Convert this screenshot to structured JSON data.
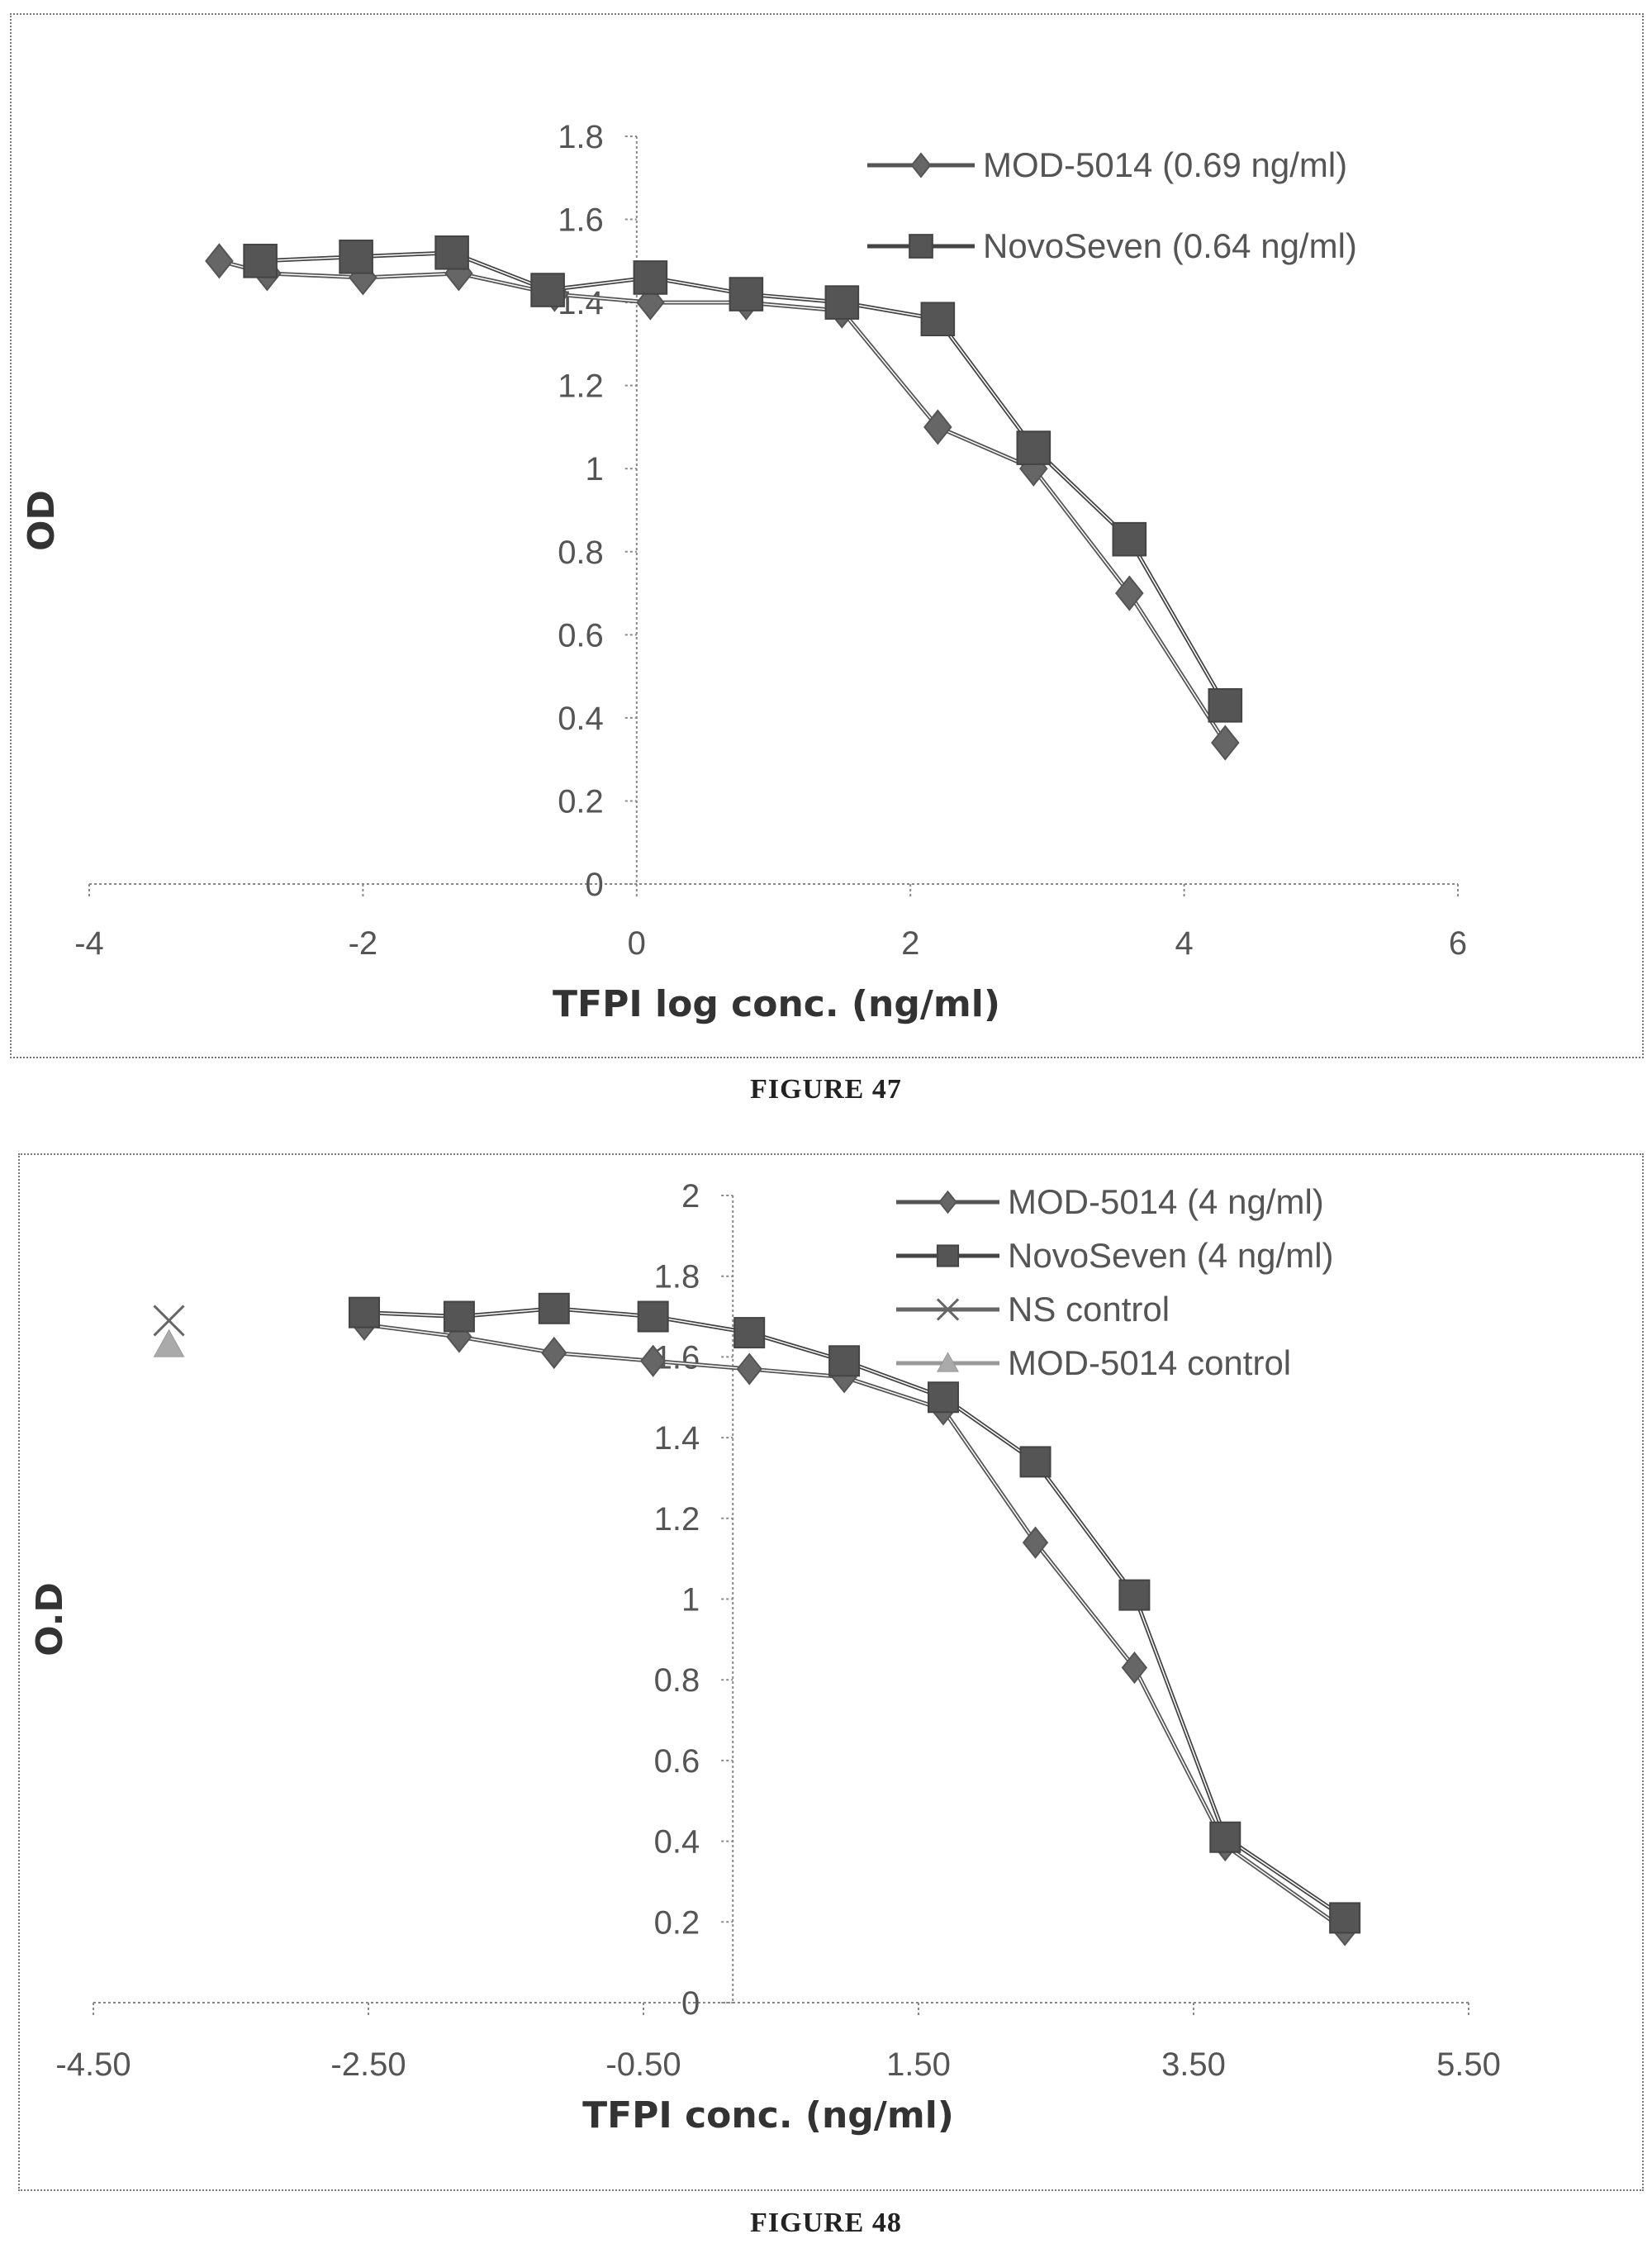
{
  "figures": [
    {
      "caption": "FIGURE 47",
      "chart_data": {
        "type": "line",
        "title": "",
        "xlabel": "TFPI log conc. (ng/ml)",
        "ylabel": "OD",
        "xlim": [
          -4,
          6
        ],
        "ylim": [
          0,
          1.8
        ],
        "xticks": [
          -4,
          -2,
          0,
          2,
          4,
          6
        ],
        "xtick_labels": [
          "-4",
          "-2",
          "0",
          "2",
          "4",
          "6"
        ],
        "yticks": [
          0,
          0.2,
          0.4,
          0.6,
          0.8,
          1,
          1.2,
          1.4,
          1.6,
          1.8
        ],
        "ytick_labels": [
          "0",
          "0.2",
          "0.4",
          "0.6",
          "0.8",
          "1",
          "1.2",
          "1.4",
          "1.6",
          "1.8"
        ],
        "grid": false,
        "legend_position": "top-right",
        "series": [
          {
            "name": "MOD-5014 (0.69 ng/ml)",
            "marker": "diamond",
            "x": [
              -3.05,
              -2.7,
              -2.0,
              -1.3,
              -0.6,
              0.1,
              0.8,
              1.5,
              2.2,
              2.9,
              3.6,
              4.3
            ],
            "y": [
              1.5,
              1.47,
              1.46,
              1.47,
              1.42,
              1.4,
              1.4,
              1.38,
              1.1,
              1.0,
              0.7,
              0.34
            ]
          },
          {
            "name": "NovoSeven (0.64 ng/ml)",
            "marker": "square",
            "x": [
              -2.75,
              -2.05,
              -1.35,
              -0.65,
              0.1,
              0.8,
              1.5,
              2.2,
              2.9,
              3.6,
              4.3
            ],
            "y": [
              1.5,
              1.51,
              1.52,
              1.43,
              1.46,
              1.42,
              1.4,
              1.36,
              1.05,
              0.83,
              0.43
            ]
          }
        ]
      }
    },
    {
      "caption": "FIGURE 48",
      "chart_data": {
        "type": "line",
        "title": "",
        "xlabel": "TFPI conc. (ng/ml)",
        "ylabel": "O.D",
        "xlim": [
          -4.5,
          5.5
        ],
        "ylim": [
          0,
          2
        ],
        "xticks": [
          -4.5,
          -2.5,
          -0.5,
          1.5,
          3.5,
          5.5
        ],
        "xtick_labels": [
          "-4.50",
          "-2.50",
          "-0.50",
          "1.50",
          "3.50",
          "5.50"
        ],
        "yticks": [
          0,
          0.2,
          0.4,
          0.6,
          0.8,
          1,
          1.2,
          1.4,
          1.6,
          1.8,
          2
        ],
        "ytick_labels": [
          "0",
          "0.2",
          "0.4",
          "0.6",
          "0.8",
          "1",
          "1.2",
          "1.4",
          "1.6",
          "1.8",
          "2"
        ],
        "grid": false,
        "legend_position": "top-right",
        "series": [
          {
            "name": "MOD-5014 (4 ng/ml)",
            "marker": "diamond",
            "x": [
              -2.53,
              -1.84,
              -1.15,
              -0.43,
              0.27,
              0.96,
              1.68,
              2.35,
              3.07,
              3.73,
              4.6
            ],
            "y": [
              1.68,
              1.65,
              1.61,
              1.59,
              1.57,
              1.55,
              1.47,
              1.14,
              0.83,
              0.39,
              0.18
            ]
          },
          {
            "name": "NovoSeven (4 ng/ml)",
            "marker": "square",
            "x": [
              -2.53,
              -1.84,
              -1.15,
              -0.43,
              0.27,
              0.96,
              1.68,
              2.35,
              3.07,
              3.73,
              4.6
            ],
            "y": [
              1.71,
              1.7,
              1.72,
              1.7,
              1.66,
              1.59,
              1.5,
              1.34,
              1.01,
              0.41,
              0.21
            ]
          },
          {
            "name": "NS control",
            "marker": "x",
            "x": [
              -3.95
            ],
            "y": [
              1.69
            ]
          },
          {
            "name": "MOD-5014 control",
            "marker": "triangle",
            "x": [
              -3.95
            ],
            "y": [
              1.63
            ]
          }
        ]
      }
    }
  ]
}
